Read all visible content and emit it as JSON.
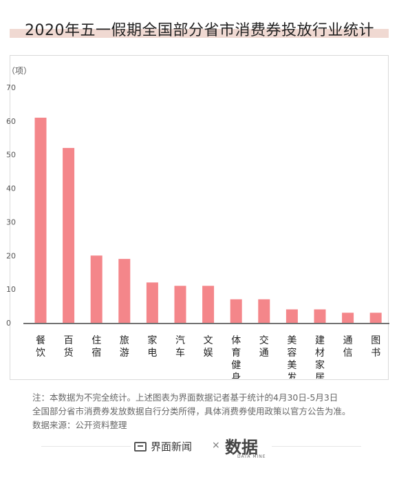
{
  "header": {
    "title": "2020年五一假期全国部分省市消费券投放行业统计"
  },
  "chart_data": {
    "type": "bar",
    "unit_label": "（项）",
    "categories": [
      "餐饮",
      "百货",
      "住宿",
      "旅游",
      "家电",
      "汽车",
      "文娱",
      "体育健身",
      "交通",
      "美容美发",
      "建材家居",
      "通信",
      "图书"
    ],
    "values": [
      61,
      52,
      20,
      19,
      12,
      11,
      11,
      7,
      7,
      4,
      4,
      3,
      3
    ],
    "ylim": [
      0,
      70
    ],
    "yticks": [
      0,
      10,
      20,
      30,
      40,
      50,
      60,
      70
    ],
    "bar_color": "#f4868a",
    "grid": false
  },
  "notes": {
    "line1": "注：本数据为不完全统计。上述图表为界面数据记者基于统计的4月30日-5月3日",
    "line2": "全国部分省市消费券发放数据自行分类所得，具体消费券使用政策以官方公告为准。",
    "line3": "数据来源：公开资料整理"
  },
  "footer": {
    "brand": "界面新闻",
    "times": "×",
    "logo": "数据",
    "logo_sub": "DATA MINE"
  },
  "colors": {
    "title_band": "#f0d9d2",
    "bar": "#f4868a"
  }
}
